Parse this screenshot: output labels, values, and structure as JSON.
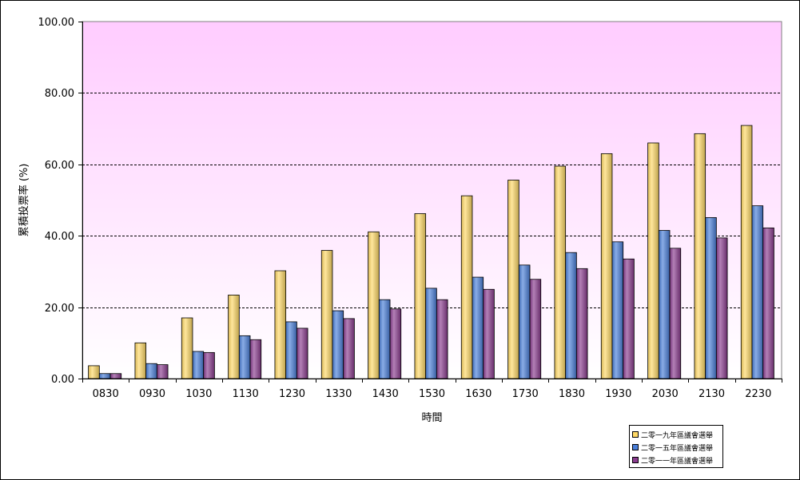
{
  "chart_data": {
    "type": "bar",
    "title": "",
    "xlabel": "時間",
    "ylabel": "累積投票率 (%)",
    "ylim": [
      0,
      100
    ],
    "yticks": [
      "0.00",
      "20.00",
      "40.00",
      "60.00",
      "80.00",
      "100.00"
    ],
    "grid": true,
    "legend_position": "bottom-right",
    "categories": [
      "0830",
      "0930",
      "1030",
      "1130",
      "1230",
      "1330",
      "1430",
      "1530",
      "1630",
      "1730",
      "1830",
      "1930",
      "2030",
      "2130",
      "2230"
    ],
    "series": [
      {
        "name": "二零一九年區議會選舉",
        "color": "#ffd966",
        "values": [
          3.6,
          10.0,
          17.0,
          23.4,
          30.2,
          35.9,
          41.1,
          46.2,
          51.2,
          55.6,
          59.5,
          63.0,
          66.0,
          68.6,
          70.9
        ]
      },
      {
        "name": "二零一五年區議會選舉",
        "color": "#4a7fd9",
        "values": [
          1.4,
          4.2,
          7.6,
          12.0,
          15.9,
          19.0,
          22.1,
          25.3,
          28.4,
          31.8,
          35.3,
          38.3,
          41.5,
          45.1,
          48.4
        ]
      },
      {
        "name": "二零一一年區議會選舉",
        "color": "#8a3c8f",
        "values": [
          1.4,
          3.9,
          7.3,
          10.9,
          14.1,
          16.8,
          19.5,
          22.1,
          25.0,
          27.8,
          30.8,
          33.5,
          36.5,
          39.4,
          42.2
        ]
      }
    ],
    "plot_background": {
      "top_color": "#ffccff",
      "bottom_color": "#ffffff"
    }
  }
}
